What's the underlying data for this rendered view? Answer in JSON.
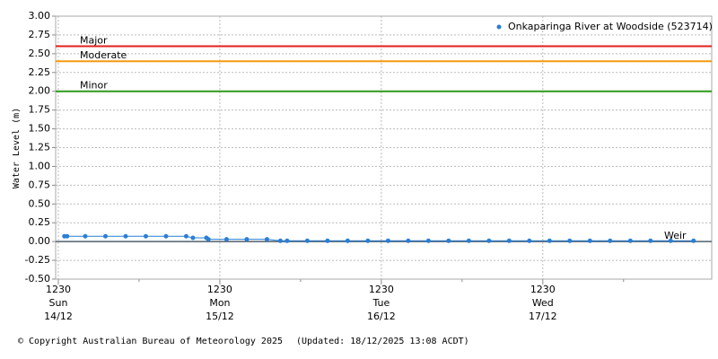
{
  "chart_data": {
    "type": "line",
    "y_label": "Water Level (m)",
    "xlim": [
      -0.4,
      97.1
    ],
    "ylim": [
      -0.5,
      3.0
    ],
    "xticks": [
      {
        "value": 0,
        "label": [
          "1230",
          "Sun",
          "14/12"
        ]
      },
      {
        "value": 24,
        "label": [
          "1230",
          "Mon",
          "15/12"
        ]
      },
      {
        "value": 48,
        "label": [
          "1230",
          "Tue",
          "16/12"
        ]
      },
      {
        "value": 72,
        "label": [
          "1230",
          "Wed",
          "17/12"
        ]
      }
    ],
    "xminorticks": [
      12,
      36,
      60,
      84
    ],
    "yticks": [
      {
        "value": -0.5,
        "label": "-0.50"
      },
      {
        "value": -0.25,
        "label": "-0.25"
      },
      {
        "value": 0,
        "label": "0.00"
      },
      {
        "value": 0.25,
        "label": "0.25"
      },
      {
        "value": 0.5,
        "label": "0.50"
      },
      {
        "value": 0.75,
        "label": "0.75"
      },
      {
        "value": 1.0,
        "label": "1.00"
      },
      {
        "value": 1.25,
        "label": "1.25"
      },
      {
        "value": 1.5,
        "label": "1.50"
      },
      {
        "value": 1.75,
        "label": "1.75"
      },
      {
        "value": 2.0,
        "label": "2.00"
      },
      {
        "value": 2.25,
        "label": "2.25"
      },
      {
        "value": 2.5,
        "label": "2.50"
      },
      {
        "value": 2.75,
        "label": "2.75"
      },
      {
        "value": 3.0,
        "label": "3.00"
      }
    ],
    "grid": true,
    "thresholds": [
      {
        "label": "Major",
        "value": 2.6,
        "color": "#e3201b"
      },
      {
        "label": "Moderate",
        "value": 2.4,
        "color": "#f59a10"
      },
      {
        "label": "Minor",
        "value": 2.0,
        "color": "#2e9a1a"
      }
    ],
    "reference": {
      "label": "Weir",
      "value": 0,
      "color": "#50606e"
    },
    "legend": "top-right",
    "x": [
      0.9,
      1.3,
      4,
      7,
      10,
      13,
      16,
      19,
      20,
      22,
      22.3,
      25,
      28,
      31,
      33,
      34,
      37,
      40,
      43,
      46,
      49,
      52,
      55,
      58,
      61,
      64,
      67,
      70,
      73,
      76,
      79,
      82,
      85,
      88,
      91,
      94.4
    ],
    "series": [
      {
        "name": "Onkaparinga River at Woodside (523714)",
        "color": "#2a7fd4",
        "values": [
          0.07,
          0.07,
          0.07,
          0.07,
          0.07,
          0.07,
          0.07,
          0.07,
          0.05,
          0.05,
          0.03,
          0.03,
          0.03,
          0.03,
          0.01,
          0.01,
          0.01,
          0.01,
          0.01,
          0.01,
          0.01,
          0.01,
          0.01,
          0.01,
          0.01,
          0.01,
          0.01,
          0.01,
          0.01,
          0.01,
          0.01,
          0.01,
          0.01,
          0.01,
          0.01,
          0.01
        ]
      }
    ]
  },
  "footer": {
    "copyright": "© Copyright Australian Bureau of Meteorology 2025",
    "updated": "(Updated: 18/12/2025 13:08 ACDT)"
  }
}
